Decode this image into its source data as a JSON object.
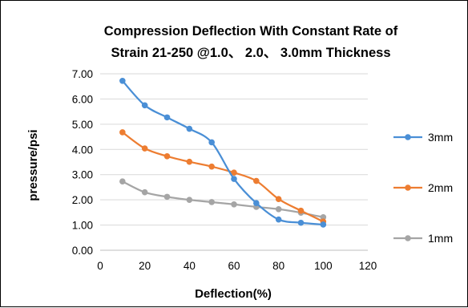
{
  "chart_data": {
    "type": "line",
    "title_lines": [
      "Compression Deflection With Constant Rate of",
      "Strain 21-250 @1.0、 2.0、 3.0mm Thickness"
    ],
    "xlabel": "Deflection(%)",
    "ylabel": "pressure/psi",
    "xlim": [
      0,
      120
    ],
    "ylim": [
      0,
      7
    ],
    "x_ticks": [
      "0",
      "20",
      "40",
      "60",
      "80",
      "100",
      "120"
    ],
    "y_ticks": [
      "0.00",
      "1.00",
      "2.00",
      "3.00",
      "4.00",
      "5.00",
      "6.00",
      "7.00"
    ],
    "grid": "horizontal",
    "legend_position": "right",
    "x": [
      10,
      20,
      30,
      40,
      50,
      60,
      70,
      80,
      90,
      100
    ],
    "series": [
      {
        "name": "3mm",
        "color": "#4a8fd6",
        "values": [
          6.72,
          5.75,
          5.27,
          4.82,
          4.28,
          2.83,
          1.87,
          1.22,
          1.09,
          1.02
        ]
      },
      {
        "name": "2mm",
        "color": "#ed7d31",
        "values": [
          4.68,
          4.04,
          3.73,
          3.51,
          3.32,
          3.08,
          2.75,
          2.03,
          1.57,
          1.14
        ]
      },
      {
        "name": "1mm",
        "color": "#a5a5a5",
        "values": [
          2.73,
          2.3,
          2.12,
          2.0,
          1.91,
          1.82,
          1.72,
          1.63,
          1.49,
          1.31
        ]
      }
    ]
  }
}
